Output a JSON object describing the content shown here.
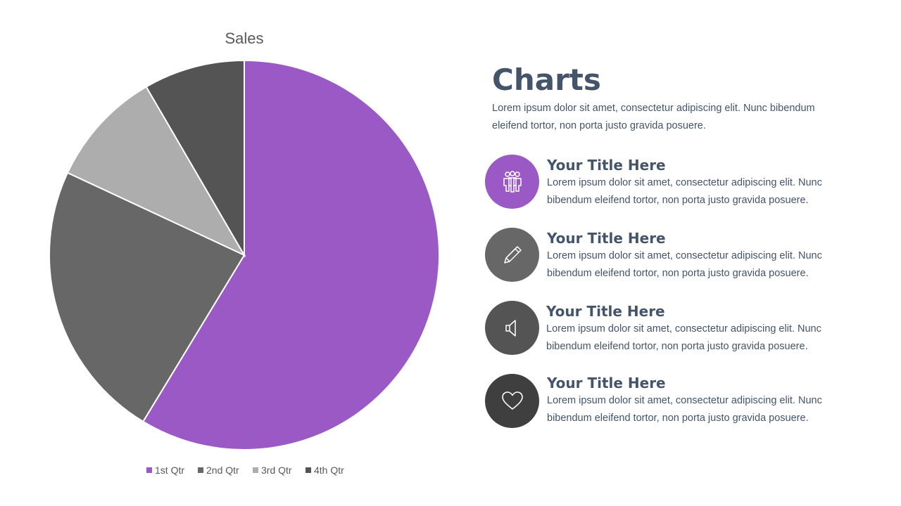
{
  "chart_data": {
    "type": "pie",
    "title": "Sales",
    "categories": [
      "1st Qtr",
      "2nd Qtr",
      "3rd Qtr",
      "4th Qtr"
    ],
    "values": [
      59.5,
      23.6,
      9.8,
      8.5
    ],
    "colors": [
      "#9b59c5",
      "#676767",
      "#adadad",
      "#545454"
    ],
    "legend": "bottom",
    "start_angle_deg": 0,
    "direction": "clockwise"
  },
  "side": {
    "heading": "Charts",
    "intro": "Lorem ipsum dolor sit amet, consectetur adipiscing elit. Nunc bibendum eleifend tortor, non porta justo gravida posuere.",
    "items": [
      {
        "title": "Your Title Here",
        "description": "Lorem ipsum dolor sit amet, consectetur adipiscing elit. Nunc bibendum eleifend tortor, non porta justo gravida posuere.",
        "icon": "people-icon",
        "color": "#9b59c5"
      },
      {
        "title": "Your Title Here",
        "description": "Lorem ipsum dolor sit amet, consectetur adipiscing elit. Nunc bibendum eleifend tortor, non porta justo gravida posuere.",
        "icon": "pencil-icon",
        "color": "#676767"
      },
      {
        "title": "Your Title Here",
        "description": "Lorem ipsum dolor sit amet, consectetur adipiscing elit. Nunc bibendum eleifend tortor, non porta justo gravida posuere.",
        "icon": "speaker-icon",
        "color": "#545454"
      },
      {
        "title": "Your Title Here",
        "description": "Lorem ipsum dolor sit amet, consectetur adipiscing elit. Nunc bibendum eleifend tortor, non porta justo gravida posuere.",
        "icon": "heart-icon",
        "color": "#3f3f3f"
      }
    ]
  }
}
